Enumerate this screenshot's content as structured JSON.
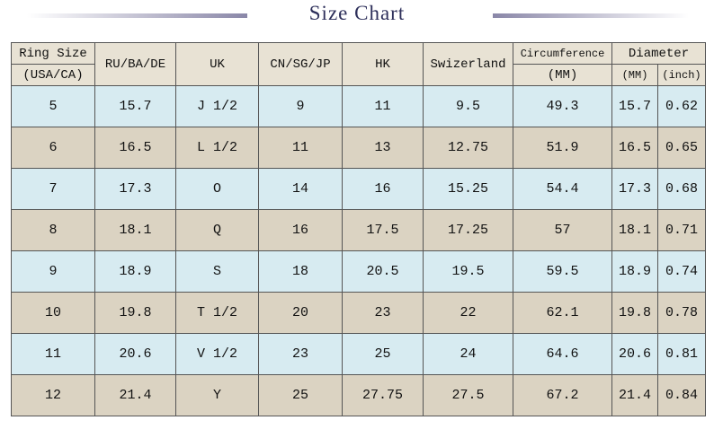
{
  "title": "Size Chart",
  "header": {
    "ring_size": [
      "Ring Size",
      "(USA/CA)"
    ],
    "columns": [
      "RU/BA/DE",
      "UK",
      "CN/SG/JP",
      "HK",
      "Swizerland"
    ],
    "circumference": [
      "Circumference",
      "(MM)"
    ],
    "diameter": {
      "label": "Diameter",
      "units": [
        "(MM)",
        "(inch)"
      ]
    }
  },
  "table": {
    "rows": [
      [
        "5",
        "15.7",
        "J 1/2",
        "9",
        "11",
        "9.5",
        "49.3",
        "15.7",
        "0.62"
      ],
      [
        "6",
        "16.5",
        "L 1/2",
        "11",
        "13",
        "12.75",
        "51.9",
        "16.5",
        "0.65"
      ],
      [
        "7",
        "17.3",
        "O",
        "14",
        "16",
        "15.25",
        "54.4",
        "17.3",
        "0.68"
      ],
      [
        "8",
        "18.1",
        "Q",
        "16",
        "17.5",
        "17.25",
        "57",
        "18.1",
        "0.71"
      ],
      [
        "9",
        "18.9",
        "S",
        "18",
        "20.5",
        "19.5",
        "59.5",
        "18.9",
        "0.74"
      ],
      [
        "10",
        "19.8",
        "T 1/2",
        "20",
        "23",
        "22",
        "62.1",
        "19.8",
        "0.78"
      ],
      [
        "11",
        "20.6",
        "V 1/2",
        "23",
        "25",
        "24",
        "64.6",
        "20.6",
        "0.81"
      ],
      [
        "12",
        "21.4",
        "Y",
        "25",
        "27.75",
        "27.5",
        "67.2",
        "21.4",
        "0.84"
      ]
    ]
  }
}
